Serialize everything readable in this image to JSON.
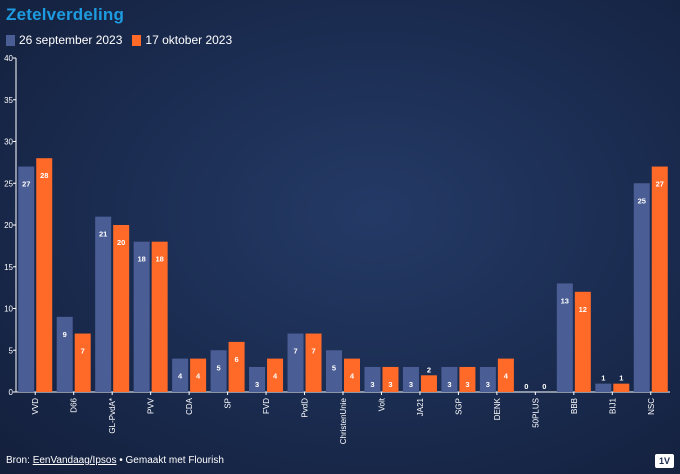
{
  "header": {
    "title": "Zetelverdeling"
  },
  "footer": {
    "prefix": "Bron: ",
    "source_link": "EenVandaag/Ipsos",
    "suffix": " • Gemaakt met Flourish"
  },
  "badge": "1V",
  "colors": {
    "series1": "#4a5d95",
    "series2": "#ff6a28",
    "title": "#1e9be0"
  },
  "chart_data": {
    "type": "bar",
    "title": "Zetelverdeling",
    "categories": [
      "VVD",
      "D66",
      "GL-PvdA*",
      "PVV",
      "CDA",
      "SP",
      "FVD",
      "PvdD",
      "ChristenUnie",
      "Volt",
      "JA21",
      "SGP",
      "DENK",
      "50PLUS",
      "BBB",
      "BIJ1",
      "NSC"
    ],
    "series": [
      {
        "name": "26 september 2023",
        "color": "#4a5d95",
        "values": [
          27,
          9,
          21,
          18,
          4,
          5,
          3,
          7,
          5,
          3,
          3,
          3,
          3,
          0,
          13,
          1,
          25
        ]
      },
      {
        "name": "17 oktober 2023",
        "color": "#ff6a28",
        "values": [
          28,
          7,
          20,
          18,
          4,
          6,
          4,
          7,
          4,
          3,
          2,
          3,
          4,
          0,
          12,
          1,
          27
        ]
      }
    ],
    "ylim": [
      0,
      40
    ],
    "yticks": [
      0,
      5,
      10,
      15,
      20,
      25,
      30,
      35,
      40
    ],
    "legend": "top-left",
    "grid": false
  }
}
